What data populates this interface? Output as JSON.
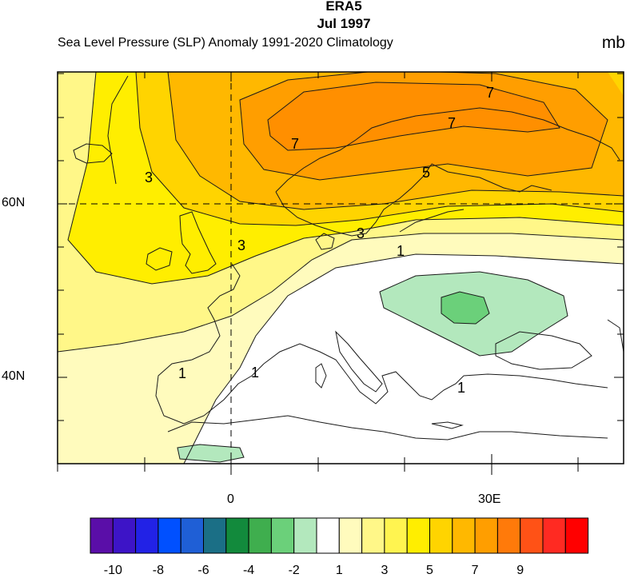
{
  "header": {
    "dataset": "ERA5",
    "period": "Jul 1997",
    "subtitle": "Sea Level Pressure (SLP) Anomaly  1991-2020 Climatology",
    "units": "mb"
  },
  "map": {
    "projection": "cylindrical equidistant",
    "region": "Europe / North Atlantic",
    "lon_range": [
      -20,
      45
    ],
    "lat_range": [
      30,
      75
    ],
    "gridlines": "dashed at 0 and 60N",
    "y_tick_labels": [
      "60N",
      "40N"
    ],
    "x_tick_labels": [
      "0",
      "30E"
    ],
    "contour_labels": [
      "7",
      "7",
      "7",
      "5",
      "3",
      "3",
      "3",
      "1",
      "1",
      "1",
      "1"
    ],
    "field_summary": {
      "positive_max": "about +7 to +8 mb over Scandinavia",
      "negative_min": "about -2 to -3 mb over Ukraine"
    }
  },
  "colorbar": {
    "labels": [
      "-10",
      "-8",
      "-6",
      "-4",
      "-2",
      "1",
      "3",
      "5",
      "7",
      "9"
    ],
    "colors": [
      "#5a0ea8",
      "#3d14c7",
      "#2222e6",
      "#0050ff",
      "#1f5fd6",
      "#1b6f86",
      "#128a3c",
      "#3fae4e",
      "#6bd07a",
      "#b3e8bd",
      "#ffffff",
      "#fffbbd",
      "#fff788",
      "#fff450",
      "#ffee00",
      "#ffd400",
      "#ffb800",
      "#ff9e00",
      "#ff7a0a",
      "#ff5216",
      "#ff2a22",
      "#ff0000"
    ]
  },
  "palette": {
    "land_line": "#1a1a1a",
    "contour_line": "#1a1a1a",
    "fill_1_3": "#fffbbd",
    "fill_3_5": "#fff788",
    "fill_5_7": "#ffee00",
    "fill_7_9": "#ffd400",
    "fill_9_11": "#ffb800",
    "fill_11_13": "#ff9e00",
    "neg_fill_1": "#b3e8bd",
    "neg_fill_2": "#6bd07a"
  }
}
